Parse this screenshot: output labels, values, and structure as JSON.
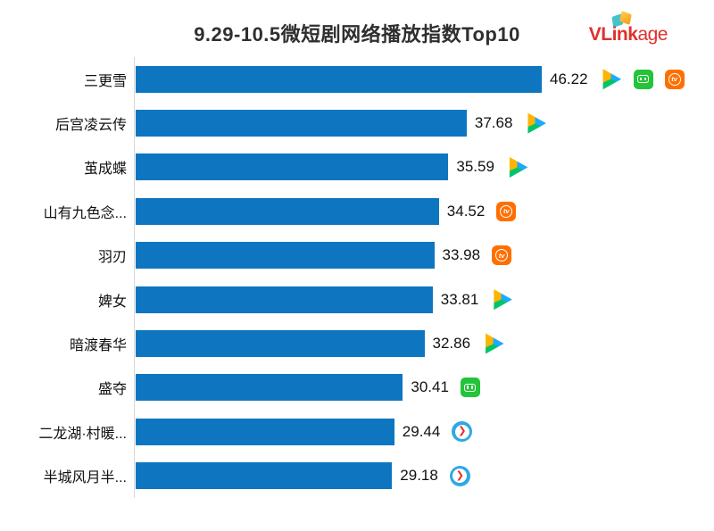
{
  "header": {
    "logo": {
      "bold": "VLink",
      "rest": "age",
      "color": "#e0302e"
    },
    "logo_mark_colors": {
      "teal": "#43c3c9",
      "orange": "#f59a1d",
      "yellow": "#ffd24d"
    }
  },
  "chart_data": {
    "type": "bar",
    "orientation": "horizontal",
    "title": "9.29-10.5微短剧网络播放指数Top10",
    "xlabel": "",
    "ylabel": "",
    "xlim": [
      0,
      46.22
    ],
    "grid": false,
    "legend": "none",
    "bar_color": "#0e76c1",
    "axis_line_color": "#d8d8d8",
    "categories": [
      "三更雪",
      "后宫凌云传",
      "茧成蝶",
      "山有九色念...",
      "羽刃",
      "婢女",
      "暗渡春华",
      "盛夺",
      "二龙湖·村暖...",
      "半城风月半..."
    ],
    "values": [
      46.22,
      37.68,
      35.59,
      34.52,
      33.98,
      33.81,
      32.86,
      30.41,
      29.44,
      29.18
    ],
    "platform_icons": [
      [
        "tencent-video-icon",
        "iqiyi-icon",
        "mango-tv-icon"
      ],
      [
        "tencent-video-icon"
      ],
      [
        "tencent-video-icon"
      ],
      [
        "mango-tv-icon"
      ],
      [
        "mango-tv-icon"
      ],
      [
        "tencent-video-icon"
      ],
      [
        "tencent-video-icon"
      ],
      [
        "iqiyi-icon"
      ],
      [
        "blue-circle-play-icon"
      ],
      [
        "blue-circle-play-icon"
      ]
    ]
  },
  "icons": {
    "tencent-video-icon": {
      "colors": [
        "#1caafc",
        "#00c46a",
        "#ffb400"
      ]
    },
    "iqiyi-icon": {
      "color": "#23c43a"
    },
    "mango-tv-icon": {
      "color": "#ff6f00",
      "glyph": "tv"
    },
    "blue-circle-play-icon": {
      "color": "#2fa8e6",
      "glyph": "❯",
      "arrow_color": "#e62b2b"
    }
  }
}
